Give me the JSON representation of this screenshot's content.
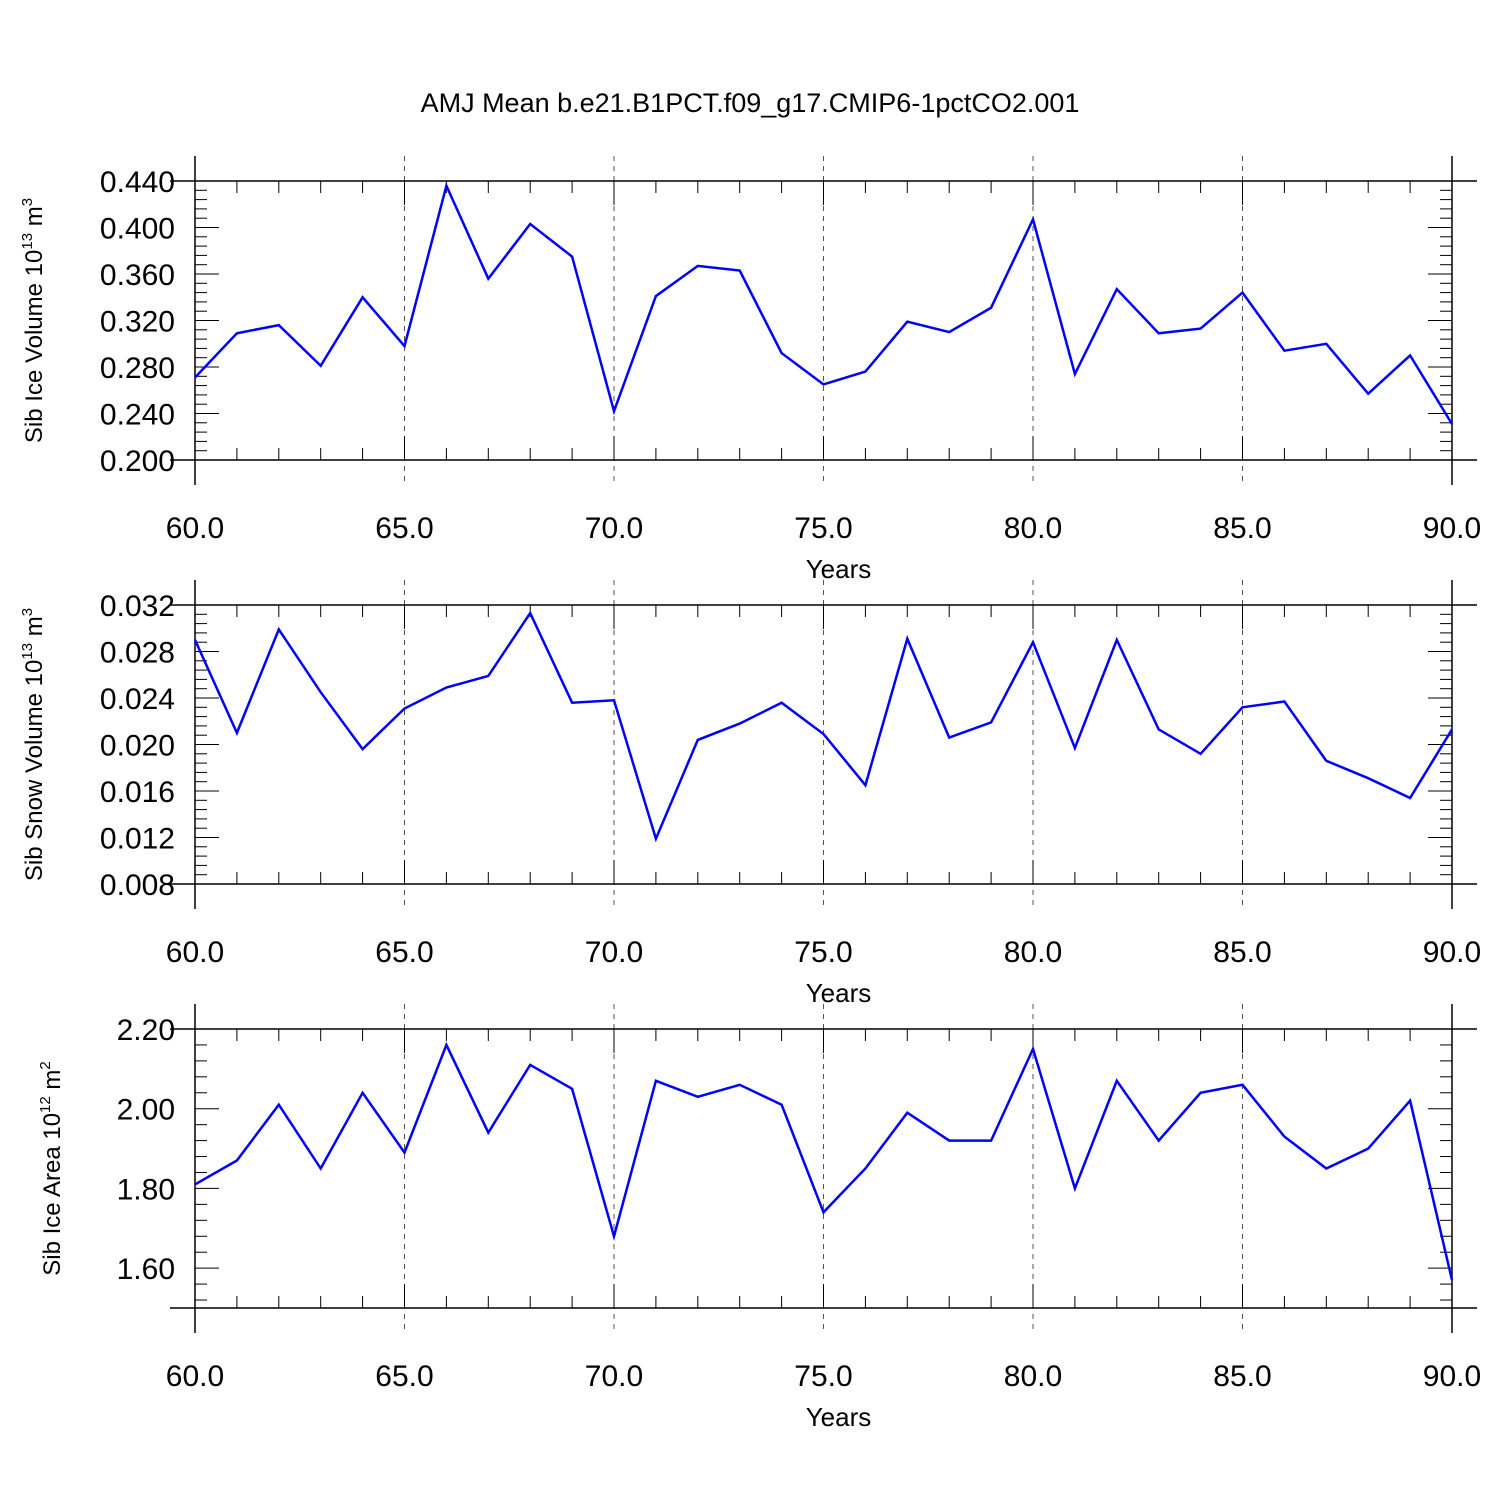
{
  "title": "AMJ Mean b.e21.B1PCT.f09_g17.CMIP6-1pctCO2.001",
  "line_color": "#0000ff",
  "chart_data": [
    {
      "type": "line",
      "xlabel": "Years",
      "ylabel_main": "Sib Ice Volume 10",
      "ylabel_exp": "13",
      "ylabel_unit": " m",
      "ylabel_unit_exp": "3",
      "xlim": [
        60,
        90
      ],
      "ylim": [
        0.2,
        0.44
      ],
      "xticks": [
        60,
        65,
        70,
        75,
        80,
        85,
        90
      ],
      "xtick_labels": [
        "60.0",
        "65.0",
        "70.0",
        "75.0",
        "80.0",
        "85.0",
        "90.0"
      ],
      "yticks": [
        0.2,
        0.24,
        0.28,
        0.32,
        0.36,
        0.4,
        0.44
      ],
      "ytick_labels": [
        "0.200",
        "0.240",
        "0.280",
        "0.320",
        "0.360",
        "0.400",
        "0.440"
      ],
      "x": [
        60,
        61,
        62,
        63,
        64,
        65,
        66,
        67,
        68,
        69,
        70,
        71,
        72,
        73,
        74,
        75,
        76,
        77,
        78,
        79,
        80,
        81,
        82,
        83,
        84,
        85,
        86,
        87,
        88,
        89,
        90
      ],
      "y": [
        0.271,
        0.309,
        0.316,
        0.281,
        0.34,
        0.298,
        0.436,
        0.356,
        0.403,
        0.375,
        0.242,
        0.341,
        0.367,
        0.363,
        0.292,
        0.265,
        0.276,
        0.319,
        0.31,
        0.331,
        0.407,
        0.274,
        0.347,
        0.309,
        0.313,
        0.344,
        0.294,
        0.3,
        0.257,
        0.29,
        0.231
      ]
    },
    {
      "type": "line",
      "xlabel": "Years",
      "ylabel_main": "Sib Snow Volume 10",
      "ylabel_exp": "13",
      "ylabel_unit": " m",
      "ylabel_unit_exp": "3",
      "xlim": [
        60,
        90
      ],
      "ylim": [
        0.008,
        0.032
      ],
      "xticks": [
        60,
        65,
        70,
        75,
        80,
        85,
        90
      ],
      "xtick_labels": [
        "60.0",
        "65.0",
        "70.0",
        "75.0",
        "80.0",
        "85.0",
        "90.0"
      ],
      "yticks": [
        0.008,
        0.012,
        0.016,
        0.02,
        0.024,
        0.028,
        0.032
      ],
      "ytick_labels": [
        "0.008",
        "0.012",
        "0.016",
        "0.020",
        "0.024",
        "0.028",
        "0.032"
      ],
      "x": [
        60,
        61,
        62,
        63,
        64,
        65,
        66,
        67,
        68,
        69,
        70,
        71,
        72,
        73,
        74,
        75,
        76,
        77,
        78,
        79,
        80,
        81,
        82,
        83,
        84,
        85,
        86,
        87,
        88,
        89,
        90
      ],
      "y": [
        0.029,
        0.021,
        0.0299,
        0.0245,
        0.0196,
        0.0231,
        0.0249,
        0.0259,
        0.0313,
        0.0236,
        0.0238,
        0.0119,
        0.0204,
        0.0218,
        0.0236,
        0.0209,
        0.0165,
        0.0291,
        0.0206,
        0.0219,
        0.0288,
        0.0197,
        0.029,
        0.0213,
        0.0192,
        0.0232,
        0.0237,
        0.0186,
        0.0171,
        0.0154,
        0.0213
      ]
    },
    {
      "type": "line",
      "xlabel": "Years",
      "ylabel_main": "Sib Ice Area 10",
      "ylabel_exp": "12",
      "ylabel_unit": " m",
      "ylabel_unit_exp": "2",
      "xlim": [
        60,
        90
      ],
      "ylim": [
        1.5,
        2.2
      ],
      "xticks": [
        60,
        65,
        70,
        75,
        80,
        85,
        90
      ],
      "xtick_labels": [
        "60.0",
        "65.0",
        "70.0",
        "75.0",
        "80.0",
        "85.0",
        "90.0"
      ],
      "yticks": [
        1.6,
        1.8,
        2.0,
        2.2
      ],
      "ytick_labels": [
        "1.60",
        "1.80",
        "2.00",
        "2.20"
      ],
      "x": [
        60,
        61,
        62,
        63,
        64,
        65,
        66,
        67,
        68,
        69,
        70,
        71,
        72,
        73,
        74,
        75,
        76,
        77,
        78,
        79,
        80,
        81,
        82,
        83,
        84,
        85,
        86,
        87,
        88,
        89,
        90
      ],
      "y": [
        1.81,
        1.87,
        2.01,
        1.85,
        2.04,
        1.89,
        2.16,
        1.94,
        2.11,
        2.05,
        1.68,
        2.07,
        2.03,
        2.06,
        2.01,
        1.74,
        1.85,
        1.99,
        1.92,
        1.92,
        2.15,
        1.8,
        2.07,
        1.92,
        2.04,
        2.06,
        1.93,
        1.85,
        1.9,
        2.02,
        1.57
      ]
    }
  ]
}
